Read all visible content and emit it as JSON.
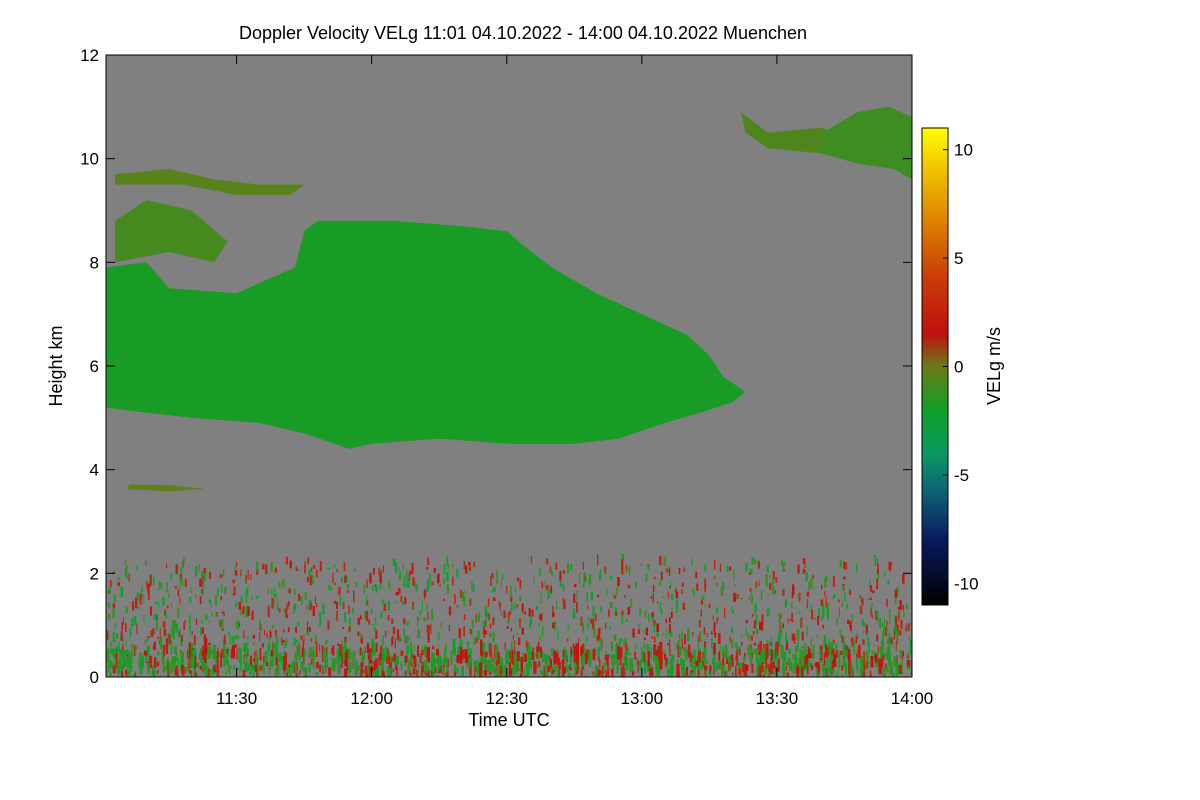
{
  "chart_data": {
    "type": "heatmap",
    "title": "Doppler Velocity VELg   11:01 04.10.2022 - 14:00 04.10.2022 Muenchen",
    "xlabel": "Time UTC",
    "ylabel": "Height km",
    "colorbar_label": "VELg m/s",
    "xlim": [
      "11:01",
      "14:00"
    ],
    "ylim": [
      0,
      12
    ],
    "x_ticks": [
      {
        "value": "11:30",
        "label": "11:30"
      },
      {
        "value": "12:00",
        "label": "12:00"
      },
      {
        "value": "12:30",
        "label": "12:30"
      },
      {
        "value": "13:00",
        "label": "13:00"
      },
      {
        "value": "13:30",
        "label": "13:30"
      },
      {
        "value": "14:00",
        "label": "14:00"
      }
    ],
    "y_ticks": [
      {
        "value": 0,
        "label": "0"
      },
      {
        "value": 2,
        "label": "2"
      },
      {
        "value": 4,
        "label": "4"
      },
      {
        "value": 6,
        "label": "6"
      },
      {
        "value": 8,
        "label": "8"
      },
      {
        "value": 10,
        "label": "10"
      },
      {
        "value": 12,
        "label": "12"
      }
    ],
    "colorbar": {
      "range": [
        -11,
        11
      ],
      "ticks": [
        {
          "value": 10,
          "label": "10"
        },
        {
          "value": 5,
          "label": "5"
        },
        {
          "value": 0,
          "label": "0"
        },
        {
          "value": -5,
          "label": "-5"
        },
        {
          "value": -10,
          "label": "-10"
        }
      ],
      "colormap": [
        {
          "v": -11,
          "color": "#000000"
        },
        {
          "v": -8,
          "color": "#0a1a60"
        },
        {
          "v": -5.5,
          "color": "#0e6a76"
        },
        {
          "v": -4,
          "color": "#0a9a60"
        },
        {
          "v": -2,
          "color": "#10a028"
        },
        {
          "v": 0,
          "color": "#6a7a18"
        },
        {
          "v": 1.5,
          "color": "#c01010"
        },
        {
          "v": 4,
          "color": "#c83a08"
        },
        {
          "v": 7,
          "color": "#e08a00"
        },
        {
          "v": 9,
          "color": "#f0c000"
        },
        {
          "v": 11,
          "color": "#ffff00"
        }
      ]
    },
    "no_data_color": "#808080",
    "regions": [
      {
        "name": "main-cloud",
        "velocity": -1.8,
        "outline": [
          [
            "11:01",
            7.9
          ],
          [
            "11:10",
            8.0
          ],
          [
            "11:15",
            7.5
          ],
          [
            "11:30",
            7.4
          ],
          [
            "11:35",
            7.6
          ],
          [
            "11:43",
            7.9
          ],
          [
            "11:45",
            8.6
          ],
          [
            "11:48",
            8.8
          ],
          [
            "12:05",
            8.8
          ],
          [
            "12:20",
            8.7
          ],
          [
            "12:30",
            8.6
          ],
          [
            "12:34",
            8.3
          ],
          [
            "12:40",
            7.9
          ],
          [
            "12:50",
            7.4
          ],
          [
            "13:05",
            6.8
          ],
          [
            "13:10",
            6.6
          ],
          [
            "13:15",
            6.2
          ],
          [
            "13:18",
            5.8
          ],
          [
            "13:23",
            5.5
          ],
          [
            "13:20",
            5.3
          ],
          [
            "13:13",
            5.1
          ],
          [
            "13:05",
            4.9
          ],
          [
            "12:55",
            4.6
          ],
          [
            "12:45",
            4.5
          ],
          [
            "12:30",
            4.5
          ],
          [
            "12:15",
            4.6
          ],
          [
            "12:00",
            4.5
          ],
          [
            "11:55",
            4.4
          ],
          [
            "11:45",
            4.7
          ],
          [
            "11:35",
            4.9
          ],
          [
            "11:20",
            5.0
          ],
          [
            "11:10",
            5.1
          ],
          [
            "11:01",
            5.2
          ]
        ]
      },
      {
        "name": "cloud-wisp-left",
        "velocity": -0.8,
        "outline": [
          [
            "11:03",
            8.8
          ],
          [
            "11:10",
            9.2
          ],
          [
            "11:20",
            9.0
          ],
          [
            "11:28",
            8.4
          ],
          [
            "11:25",
            8.0
          ],
          [
            "11:15",
            8.2
          ],
          [
            "11:03",
            8.0
          ]
        ]
      },
      {
        "name": "cirrus-band-9_5km",
        "velocity": -0.4,
        "outline": [
          [
            "11:03",
            9.7
          ],
          [
            "11:15",
            9.8
          ],
          [
            "11:25",
            9.6
          ],
          [
            "11:35",
            9.5
          ],
          [
            "11:45",
            9.5
          ],
          [
            "11:42",
            9.3
          ],
          [
            "11:30",
            9.3
          ],
          [
            "11:18",
            9.5
          ],
          [
            "11:03",
            9.5
          ]
        ]
      },
      {
        "name": "cirrus-upper-right-1",
        "velocity": -0.6,
        "outline": [
          [
            "13:22",
            10.9
          ],
          [
            "13:28",
            10.5
          ],
          [
            "13:40",
            10.6
          ],
          [
            "13:45",
            10.4
          ],
          [
            "13:40",
            10.1
          ],
          [
            "13:28",
            10.2
          ],
          [
            "13:23",
            10.5
          ]
        ]
      },
      {
        "name": "cirrus-upper-right-2",
        "velocity": -1.0,
        "outline": [
          [
            "13:40",
            10.5
          ],
          [
            "13:48",
            10.9
          ],
          [
            "13:55",
            11.0
          ],
          [
            "14:00",
            10.8
          ],
          [
            "14:00",
            9.6
          ],
          [
            "13:56",
            9.8
          ],
          [
            "13:48",
            9.9
          ],
          [
            "13:40",
            10.1
          ]
        ]
      },
      {
        "name": "layer-3_7km",
        "velocity": -0.3,
        "outline": [
          [
            "11:06",
            3.72
          ],
          [
            "11:15",
            3.7
          ],
          [
            "11:23",
            3.63
          ],
          [
            "11:15",
            3.58
          ],
          [
            "11:06",
            3.62
          ]
        ]
      }
    ]
  }
}
